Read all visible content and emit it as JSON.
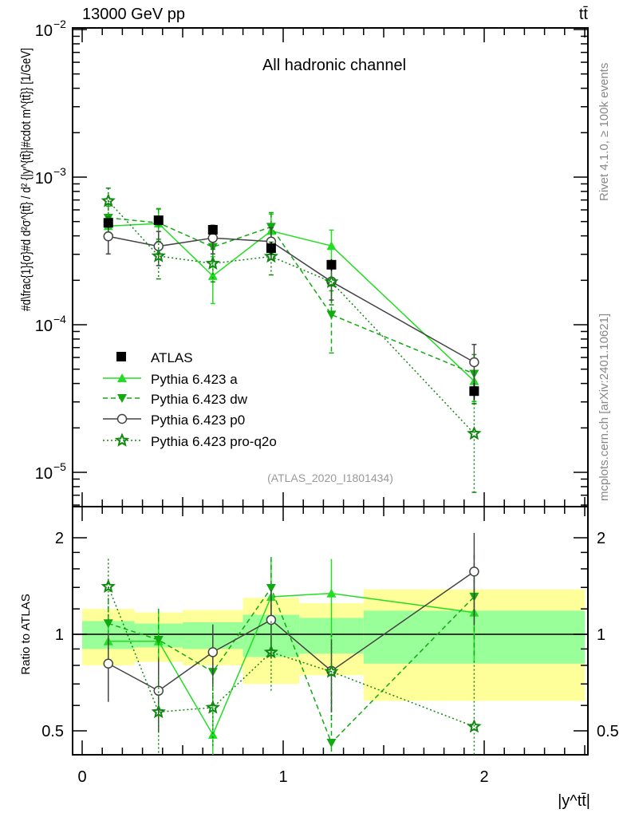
{
  "header": {
    "left": "13000 GeV pp",
    "right": "tt̄"
  },
  "side_text": {
    "top": "Rivet 4.1.0, ≥ 100k events",
    "bottom": "mcplots.cern.ch [arXiv:2401.10621]"
  },
  "chart_data": {
    "type": "line",
    "title": "All hadronic channel",
    "watermark": "(ATLAS_2020_I1801434)",
    "xlabel": "|y^tt̄|",
    "ylabel": "#d\\frac{1}{σ}#d d²σ^{tt̄} / d² {|y^{tt̄}|#cdot m^{tt̄}} [1/GeV]",
    "ratio_ylabel": "Ratio to ATLAS",
    "xlim": [
      -0.05,
      2.52
    ],
    "ylim": [
      5.8e-06,
      0.01
    ],
    "ratio_ylim": [
      0.42,
      2.47
    ],
    "yscale": "log",
    "x_ticks": [
      "0",
      "1",
      "2"
    ],
    "y_ticks": [
      {
        "value": 0.01,
        "base": "10",
        "exp": "−2"
      },
      {
        "value": 0.001,
        "base": "10",
        "exp": "−3"
      },
      {
        "value": 0.0001,
        "base": "10",
        "exp": "−4"
      },
      {
        "value": 1e-05,
        "base": "10",
        "exp": "−5"
      }
    ],
    "ratio_ticks": [
      "0.5",
      "1",
      "2"
    ],
    "bin_edges": [
      0,
      0.26,
      0.5,
      0.8,
      1.08,
      1.4,
      2.5
    ],
    "x": [
      0.13,
      0.38,
      0.65,
      0.94,
      1.24,
      1.95
    ],
    "reference": {
      "name": "ATLAS",
      "values": [
        0.00049,
        0.00051,
        0.00044,
        0.00033,
        0.000255,
        3.55e-05
      ],
      "band_total": [
        [
          0.8,
          1.2
        ],
        [
          0.82,
          1.17
        ],
        [
          0.8,
          1.19
        ],
        [
          0.7,
          1.3
        ],
        [
          0.745,
          1.25
        ],
        [
          0.62,
          1.38
        ]
      ],
      "band_stat": [
        [
          0.9,
          1.1
        ],
        [
          0.91,
          1.08
        ],
        [
          0.9,
          1.09
        ],
        [
          0.85,
          1.15
        ],
        [
          0.87,
          1.125
        ],
        [
          0.81,
          1.185
        ]
      ],
      "color": "#000000"
    },
    "series": [
      {
        "name": "Pythia 6.423 a",
        "marker": "triangle-up",
        "dash": "solid",
        "color": "#22dd22",
        "values": [
          0.000466,
          0.000485,
          0.000214,
          0.000432,
          0.000342,
          4.15e-05
        ],
        "rel_err": [
          0.12,
          0.25,
          0.35,
          0.3,
          0.28,
          0.3
        ]
      },
      {
        "name": "Pythia 6.423 dw",
        "marker": "triangle-down",
        "dash": "dashed",
        "color": "#11aa11",
        "values": [
          0.00053,
          0.00049,
          0.000336,
          0.00046,
          0.000117,
          4.65e-05
        ],
        "rel_err": [
          0.2,
          0.25,
          0.2,
          0.25,
          0.45,
          0.35
        ]
      },
      {
        "name": "Pythia 6.423 p0",
        "marker": "circle-open",
        "dash": "solid",
        "color": "#444444",
        "values": [
          0.000397,
          0.00034,
          0.000387,
          0.000366,
          0.000196,
          5.57e-05
        ],
        "rel_err": [
          0.24,
          0.26,
          0.22,
          0.24,
          0.25,
          0.32
        ]
      },
      {
        "name": "Pythia 6.423 pro-q2o",
        "marker": "star-open",
        "dash": "dotted",
        "color": "#118811",
        "values": [
          0.00069,
          0.000292,
          0.00026,
          0.00029,
          0.000195,
          1.83e-05
        ],
        "rel_err": [
          0.22,
          0.3,
          0.25,
          0.25,
          0.3,
          0.6
        ]
      }
    ],
    "legend": "middle-left"
  }
}
